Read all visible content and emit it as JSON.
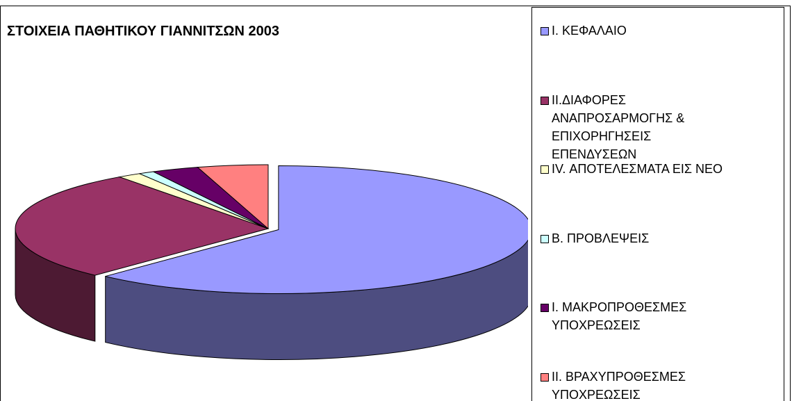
{
  "chart_data": {
    "type": "pie",
    "title": "ΣΤΟΙΧΕΙΑ ΠΑΘΗΤΙΚΟΥ ΓΙΑΝΝΙΤΣΩΝ 2003",
    "categories": [
      "Ι. ΚΕΦΑΛΑΙΟ",
      "ΙΙ.ΔΙΑΦΟΡΕΣ ΑΝΑΠΡΟΣΑΡΜΟΓΗΣ & ΕΠΙΧΟΡΗΓΗΣΕΙΣ ΕΠΕΝΔΥΣΕΩΝ",
      "IV. ΑΠΟΤΕΛΕΣΜΑΤΑ ΕΙΣ ΝΕΟ",
      "Β. ΠΡΟΒΛΕΨΕΙΣ",
      "Ι. ΜΑΚΡΟΠΡΟΘΕΣΜΕΣ ΥΠΟΧΡΕΩΣΕΙΣ",
      "ΙΙ. ΒΡΑΧΥΠΡΟΘΕΣΜΕΣ ΥΠΟΧΡΕΩΣΕΙΣ"
    ],
    "values": [
      62,
      28,
      1.5,
      1,
      3,
      4.5
    ],
    "colors": [
      "#9999ff",
      "#993366",
      "#ffffcc",
      "#ccffff",
      "#660066",
      "#ff8080"
    ],
    "legend": "right"
  }
}
